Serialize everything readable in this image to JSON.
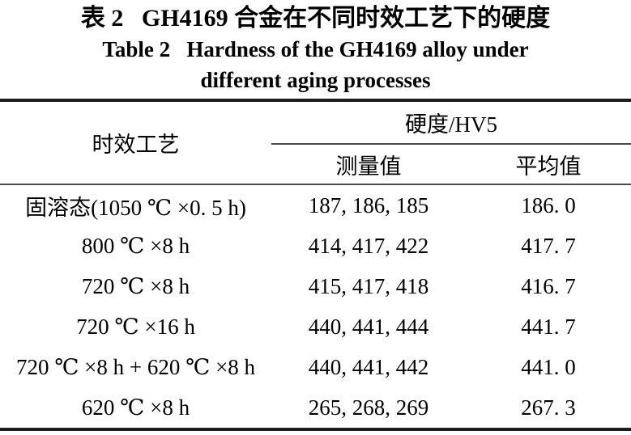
{
  "page": {
    "background": "#ffffff",
    "ink_color": "#000000",
    "rule_color": "#1c1c1c"
  },
  "title": {
    "zh": "表 2   GH4169 合金在不同时效工艺下的硬度",
    "en_line1": "Table 2   Hardness of the GH4169 alloy under",
    "en_line2": "different aging processes"
  },
  "table": {
    "row_header": "时效工艺",
    "group_header": "硬度/HV5",
    "columns": {
      "measured": "测量值",
      "average": "平均值"
    },
    "rows": [
      {
        "process": "固溶态(1050 ℃ ×0. 5 h)",
        "measured": "187, 186, 185",
        "average": "186. 0"
      },
      {
        "process": "800 ℃ ×8 h",
        "measured": "414, 417, 422",
        "average": "417. 7"
      },
      {
        "process": "720 ℃ ×8 h",
        "measured": "415, 417, 418",
        "average": "416. 7"
      },
      {
        "process": "720 ℃ ×16 h",
        "measured": "440, 441, 444",
        "average": "441. 7"
      },
      {
        "process": "720 ℃ ×8 h + 620 ℃ ×8 h",
        "measured": "440, 441, 442",
        "average": "441. 0"
      },
      {
        "process": "620 ℃ ×8 h",
        "measured": "265, 268, 269",
        "average": "267. 3"
      }
    ]
  }
}
